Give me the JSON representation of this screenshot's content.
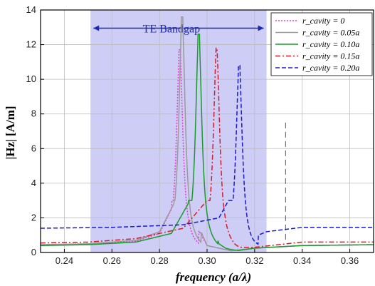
{
  "chart_data": {
    "type": "line",
    "xlabel": "frequency (a/λ)",
    "ylabel": "|Hz| [A/m]",
    "xlim": [
      0.23,
      0.37
    ],
    "ylim": [
      0,
      14
    ],
    "x_ticks": [
      0.24,
      0.26,
      0.28,
      0.3,
      0.32,
      0.34,
      0.36
    ],
    "x_tick_labels": [
      "0.24",
      "0.26",
      "0.28",
      "0.30",
      "0.32",
      "0.34",
      "0.36"
    ],
    "y_ticks": [
      0,
      2,
      4,
      6,
      8,
      10,
      12,
      14
    ],
    "y_tick_labels": [
      "0",
      "2",
      "4",
      "6",
      "8",
      "10",
      "12",
      "14"
    ],
    "grid": true,
    "legend_position": "top-right",
    "bandgap": {
      "label": "TE Bandgap",
      "x_range": [
        0.251,
        0.325
      ],
      "color": "#c8c8f5"
    },
    "vertical_marker": {
      "x": 0.333,
      "style": "dashed"
    },
    "series": [
      {
        "name": "r_cavity = 0",
        "color": "#e040d0",
        "dash": "dotted",
        "peak_x": 0.2885,
        "peak_y": 11.7,
        "x": [
          0.23,
          0.25,
          0.27,
          0.28,
          0.285,
          0.2885,
          0.292,
          0.3,
          0.31,
          0.32,
          0.34,
          0.37
        ],
        "y": [
          0.45,
          0.5,
          0.65,
          1.1,
          2.5,
          11.7,
          2.4,
          0.4,
          0.1,
          0.25,
          0.4,
          0.45
        ]
      },
      {
        "name": "r_cavity = 0.05a",
        "color": "#9a9a9a",
        "dash": "solid",
        "peak_x": 0.2895,
        "peak_y": 13.6,
        "x": [
          0.23,
          0.25,
          0.27,
          0.28,
          0.286,
          0.2895,
          0.293,
          0.3,
          0.31,
          0.32,
          0.34,
          0.37
        ],
        "y": [
          0.45,
          0.5,
          0.7,
          1.2,
          2.8,
          13.6,
          2.6,
          0.4,
          0.1,
          0.25,
          0.4,
          0.45
        ]
      },
      {
        "name": "r_cavity = 0.10a",
        "color": "#1a9a2a",
        "dash": "solid",
        "peak_x": 0.2965,
        "peak_y": 12.6,
        "x": [
          0.23,
          0.25,
          0.27,
          0.285,
          0.292,
          0.2965,
          0.3,
          0.305,
          0.31,
          0.32,
          0.34,
          0.37
        ],
        "y": [
          0.4,
          0.45,
          0.6,
          1.1,
          2.8,
          12.6,
          2.7,
          0.5,
          0.05,
          0.25,
          0.4,
          0.45
        ]
      },
      {
        "name": "r_cavity = 0.15a",
        "color": "#d81b2a",
        "dash": "dashdot",
        "peak_x": 0.304,
        "peak_y": 11.8,
        "x": [
          0.23,
          0.25,
          0.27,
          0.29,
          0.3,
          0.304,
          0.308,
          0.312,
          0.32,
          0.34,
          0.37
        ],
        "y": [
          0.55,
          0.6,
          0.8,
          1.4,
          3.0,
          11.8,
          2.5,
          0.3,
          0.3,
          0.6,
          0.6
        ]
      },
      {
        "name": "r_cavity = 0.20a",
        "color": "#1a1ad0",
        "dash": "dashed",
        "peak_x": 0.3135,
        "peak_y": 10.8,
        "x": [
          0.23,
          0.26,
          0.29,
          0.305,
          0.311,
          0.3135,
          0.3145,
          0.318,
          0.325,
          0.34,
          0.37
        ],
        "y": [
          1.4,
          1.45,
          1.6,
          2.0,
          3.5,
          10.8,
          0.1,
          0.8,
          1.2,
          1.45,
          1.45
        ]
      }
    ]
  }
}
